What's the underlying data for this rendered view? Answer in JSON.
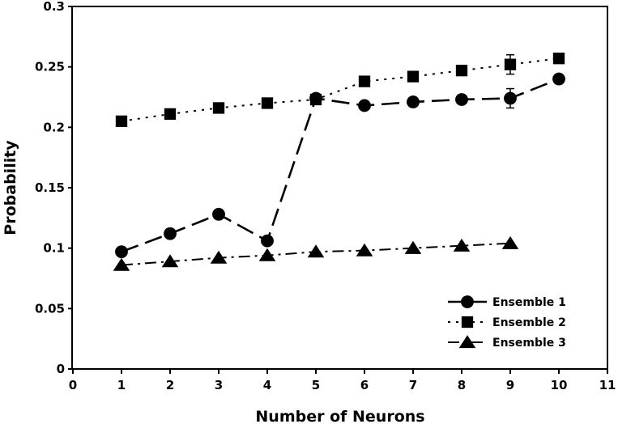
{
  "chart_data": {
    "type": "line",
    "title": "",
    "xlabel": "Number of Neurons",
    "ylabel": "Probability",
    "xlim": [
      0,
      11
    ],
    "ylim": [
      0,
      0.3
    ],
    "x_ticks": [
      0,
      1,
      2,
      3,
      4,
      5,
      6,
      7,
      8,
      9,
      10,
      11
    ],
    "y_ticks": [
      0,
      0.05,
      0.1,
      0.15,
      0.2,
      0.25,
      0.3
    ],
    "x_tick_labels": [
      "0",
      "1",
      "2",
      "3",
      "4",
      "5",
      "6",
      "7",
      "8",
      "9",
      "10",
      "11"
    ],
    "y_tick_labels": [
      "0",
      "0.05",
      "0.1",
      "0.15",
      "0.2",
      "0.25",
      "0.3"
    ],
    "grid": false,
    "legend_position": "bottom-right",
    "series": [
      {
        "name": "Ensemble 1",
        "marker": "circle",
        "line_style": "long-dash",
        "x": [
          1,
          2,
          3,
          4,
          5,
          6,
          7,
          8,
          9,
          10
        ],
        "y": [
          0.097,
          0.112,
          0.128,
          0.106,
          0.224,
          0.218,
          0.221,
          0.223,
          0.224,
          0.24
        ],
        "error": [
          0,
          0,
          0,
          0,
          0,
          0,
          0,
          0,
          0.008,
          0
        ]
      },
      {
        "name": "Ensemble 2",
        "marker": "square",
        "line_style": "dotted",
        "x": [
          1,
          2,
          3,
          4,
          5,
          6,
          7,
          8,
          9,
          10
        ],
        "y": [
          0.205,
          0.211,
          0.216,
          0.22,
          0.223,
          0.238,
          0.242,
          0.247,
          0.252,
          0.257
        ],
        "error": [
          0,
          0,
          0,
          0,
          0,
          0,
          0,
          0,
          0.008,
          0
        ]
      },
      {
        "name": "Ensemble 3",
        "marker": "triangle",
        "line_style": "dash-dot",
        "x": [
          1,
          2,
          3,
          4,
          5,
          6,
          7,
          8,
          9
        ],
        "y": [
          0.086,
          0.089,
          0.092,
          0.094,
          0.097,
          0.098,
          0.1,
          0.102,
          0.104
        ],
        "error": [
          0,
          0,
          0,
          0,
          0,
          0,
          0,
          0,
          0
        ]
      }
    ]
  }
}
